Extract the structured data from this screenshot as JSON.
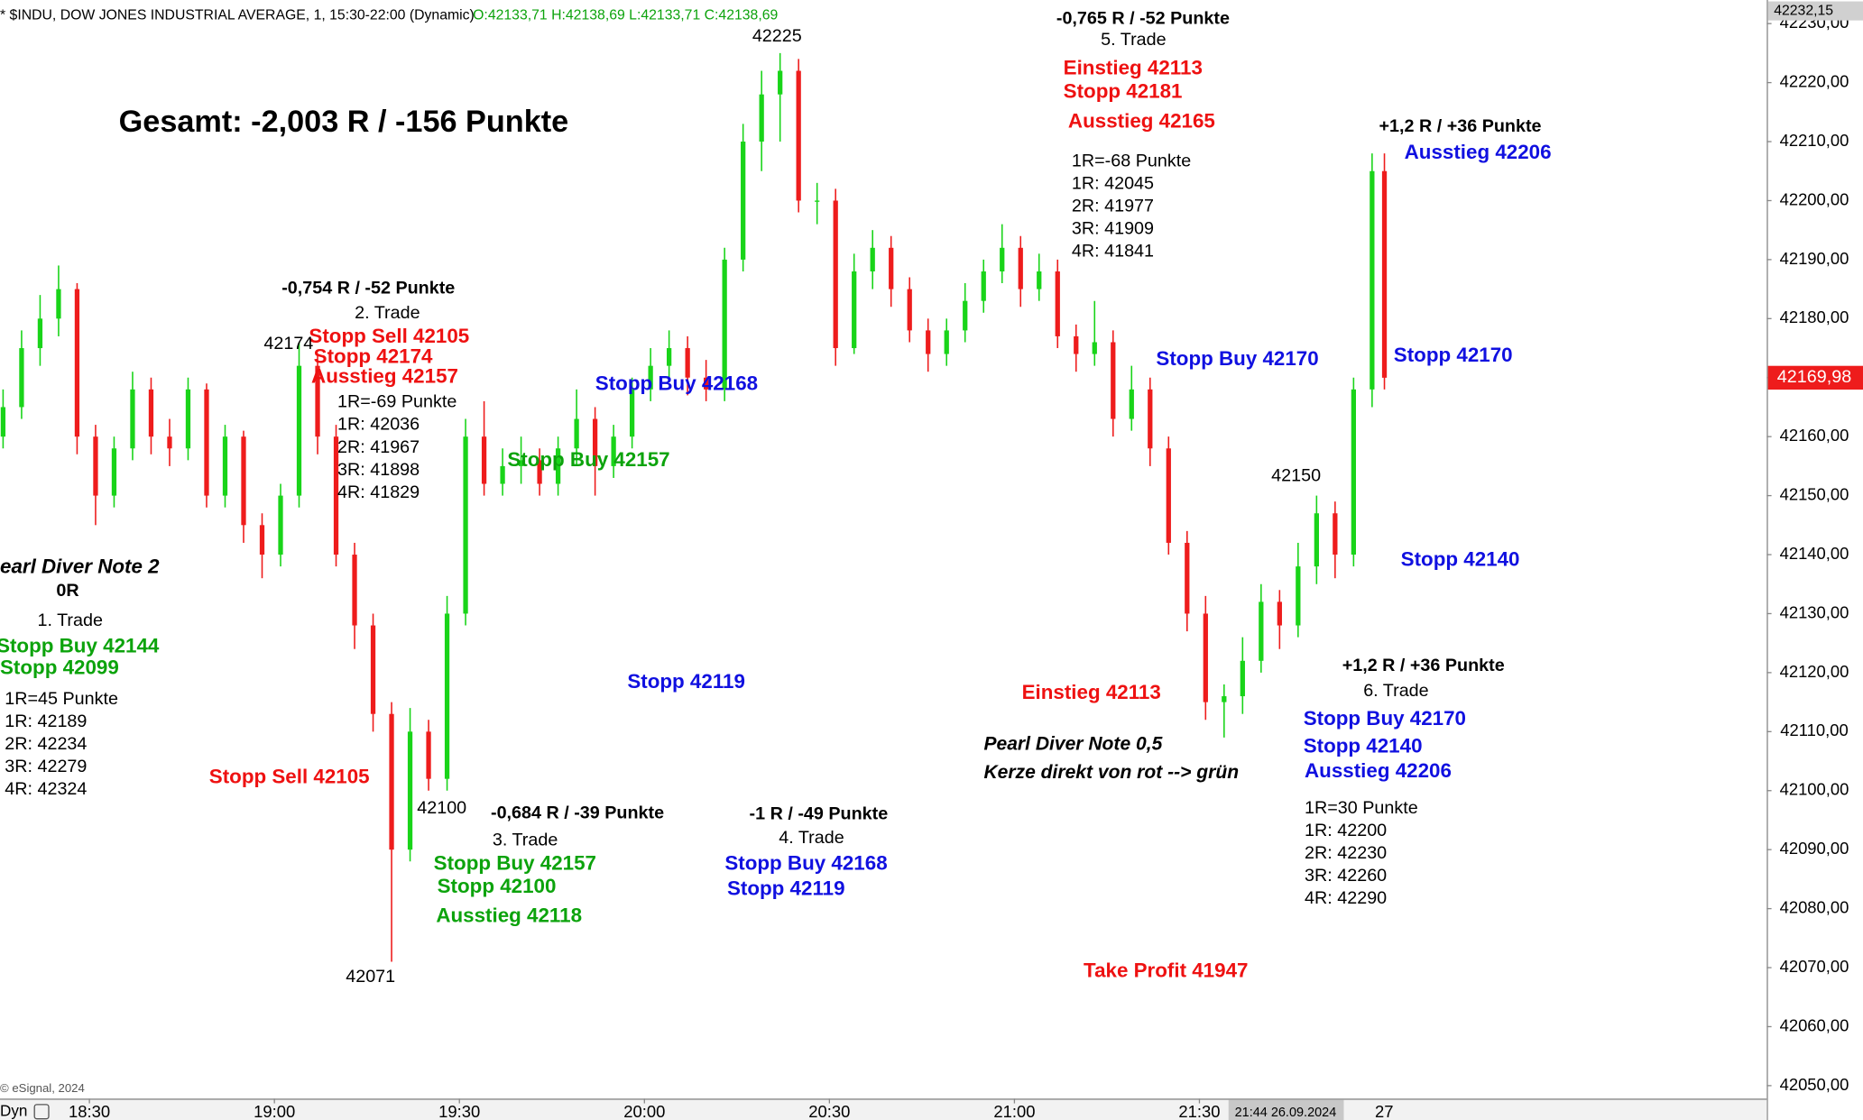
{
  "chart_data": {
    "type": "candlestick",
    "header": "* $INDU, DOW JONES INDUSTRIAL AVERAGE, 1, 15:30-22:00 (Dynamic)",
    "ohlc_header": "O:42133,71 H:42138,69 L:42133,71 C:42138,69",
    "copyright": "© eSignal, 2024",
    "mode_label": "Dyn",
    "cursor_label": "21:44 26.09.2024",
    "next_day_label": "27",
    "up_color": "#19d419",
    "down_color": "#ee1c1c",
    "x": [
      1096,
      1099,
      1102,
      1105,
      1108,
      1111,
      1114,
      1117,
      1120,
      1123,
      1126,
      1129,
      1132,
      1135,
      1138,
      1141,
      1144,
      1147,
      1150,
      1153,
      1156,
      1159,
      1162,
      1165,
      1168,
      1171,
      1174,
      1177,
      1180,
      1183,
      1186,
      1189,
      1192,
      1195,
      1198,
      1201,
      1204,
      1207,
      1210,
      1213,
      1216,
      1219,
      1222,
      1225,
      1228,
      1231,
      1234,
      1237,
      1240,
      1243,
      1246,
      1249,
      1252,
      1255,
      1258,
      1261,
      1264,
      1267,
      1270,
      1273,
      1276,
      1279,
      1282,
      1285,
      1288,
      1291,
      1294,
      1297,
      1300,
      1303,
      1306,
      1309,
      1312,
      1315,
      1318,
      1320
    ],
    "open": [
      42160,
      42165,
      42175,
      42180,
      42185,
      42160,
      42150,
      42158,
      42168,
      42160,
      42158,
      42168,
      42150,
      42160,
      42145,
      42140,
      42150,
      42172,
      42160,
      42140,
      42128,
      42113,
      42090,
      42110,
      42102,
      42130,
      42160,
      42152,
      42155,
      42156,
      42152,
      42158,
      42163,
      42155,
      42160,
      42168,
      42172,
      42175,
      42170,
      42168,
      42190,
      42210,
      42218,
      42222,
      42200,
      42200,
      42175,
      42188,
      42192,
      42185,
      42178,
      42174,
      42178,
      42183,
      42188,
      42192,
      42185,
      42188,
      42177,
      42174,
      42176,
      42163,
      42168,
      42158,
      42142,
      42130,
      42115,
      42116,
      42122,
      42132,
      42128,
      42138,
      42147,
      42140,
      42168,
      42205
    ],
    "high": [
      42168,
      42178,
      42184,
      42189,
      42186,
      42162,
      42160,
      42171,
      42170,
      42163,
      42170,
      42169,
      42162,
      42161,
      42147,
      42152,
      42176,
      42174,
      42162,
      42142,
      42130,
      42115,
      42114,
      42112,
      42133,
      42163,
      42166,
      42158,
      42160,
      42158,
      42160,
      42168,
      42165,
      42162,
      42170,
      42175,
      42178,
      42177,
      42173,
      42192,
      42213,
      42222,
      42225,
      42224,
      42203,
      42202,
      42191,
      42195,
      42194,
      42187,
      42180,
      42180,
      42186,
      42190,
      42196,
      42194,
      42191,
      42190,
      42179,
      42183,
      42178,
      42172,
      42170,
      42160,
      42144,
      42133,
      42118,
      42126,
      42135,
      42134,
      42142,
      42150,
      42149,
      42170,
      42208,
      42208
    ],
    "low": [
      42158,
      42163,
      42172,
      42177,
      42157,
      42145,
      42148,
      42156,
      42157,
      42155,
      42156,
      42148,
      42148,
      42142,
      42136,
      42138,
      42148,
      42157,
      42138,
      42124,
      42110,
      42071,
      42088,
      42100,
      42100,
      42128,
      42150,
      42150,
      42152,
      42150,
      42150,
      42155,
      42150,
      42153,
      42158,
      42166,
      42170,
      42167,
      42166,
      42166,
      42188,
      42205,
      42210,
      42198,
      42196,
      42172,
      42174,
      42185,
      42182,
      42176,
      42171,
      42172,
      42176,
      42181,
      42186,
      42182,
      42183,
      42175,
      42171,
      42172,
      42160,
      42161,
      42155,
      42140,
      42127,
      42112,
      42109,
      42113,
      42120,
      42124,
      42126,
      42135,
      42136,
      42138,
      42165,
      42168
    ],
    "close": [
      42165,
      42175,
      42180,
      42185,
      42160,
      42150,
      42158,
      42168,
      42160,
      42158,
      42168,
      42150,
      42160,
      42145,
      42140,
      42150,
      42172,
      42160,
      42140,
      42128,
      42113,
      42090,
      42110,
      42102,
      42130,
      42160,
      42152,
      42155,
      42156,
      42152,
      42158,
      42163,
      42155,
      42160,
      42168,
      42172,
      42175,
      42170,
      42168,
      42190,
      42210,
      42218,
      42222,
      42200,
      42200,
      42175,
      42188,
      42192,
      42185,
      42178,
      42174,
      42178,
      42183,
      42188,
      42192,
      42185,
      42188,
      42177,
      42174,
      42176,
      42163,
      42168,
      42158,
      42142,
      42130,
      42115,
      42116,
      42122,
      42132,
      42128,
      42138,
      42147,
      42140,
      42168,
      42205,
      42169.98
    ],
    "xlim": [
      1095.5,
      1382
    ],
    "xticks": [
      {
        "value": 1110,
        "label": "18:30"
      },
      {
        "value": 1140,
        "label": "19:00"
      },
      {
        "value": 1170,
        "label": "19:30"
      },
      {
        "value": 1200,
        "label": "20:00"
      },
      {
        "value": 1230,
        "label": "20:30"
      },
      {
        "value": 1260,
        "label": "21:00"
      },
      {
        "value": 1290,
        "label": "21:30"
      }
    ],
    "ylim": [
      42047.8,
      42234.0
    ],
    "yticks": [
      {
        "value": 42050,
        "label": "42050,00"
      },
      {
        "value": 42060,
        "label": "42060,00"
      },
      {
        "value": 42070,
        "label": "42070,00"
      },
      {
        "value": 42080,
        "label": "42080,00"
      },
      {
        "value": 42090,
        "label": "42090,00"
      },
      {
        "value": 42100,
        "label": "42100,00"
      },
      {
        "value": 42110,
        "label": "42110,00"
      },
      {
        "value": 42120,
        "label": "42120,00"
      },
      {
        "value": 42130,
        "label": "42130,00"
      },
      {
        "value": 42140,
        "label": "42140,00"
      },
      {
        "value": 42150,
        "label": "42150,00"
      },
      {
        "value": 42160,
        "label": "42160,00"
      },
      {
        "value": 42170,
        "label": "42170,00"
      },
      {
        "value": 42180,
        "label": "42180,00"
      },
      {
        "value": 42190,
        "label": "42190,00"
      },
      {
        "value": 42200,
        "label": "42200,00"
      },
      {
        "value": 42210,
        "label": "42210,00"
      },
      {
        "value": 42220,
        "label": "42220,00"
      },
      {
        "value": 42230,
        "label": "42230,00"
      }
    ],
    "top_price": {
      "value": 42232.15,
      "label": "42232,15"
    },
    "last_price": {
      "value": 42169.98,
      "label": "42169,98"
    },
    "annotations": [
      {
        "text": "Gesamt: -2,003 R / -156 Punkte",
        "color": "#000000"
      },
      {
        "text": "-0,754 R / -52 Punkte",
        "color": "#000000"
      },
      {
        "text": "2. Trade",
        "color": "#000000"
      },
      {
        "text": "Stopp Sell 42105",
        "color": "#ee1111"
      },
      {
        "text": "Stopp  42174",
        "color": "#ee1111"
      },
      {
        "text": "Ausstieg  42157",
        "color": "#ee1111"
      },
      {
        "text": "1R=-69 Punkte",
        "color": "#000000"
      },
      {
        "text": "1R: 42036",
        "color": "#000000"
      },
      {
        "text": "2R: 41967",
        "color": "#000000"
      },
      {
        "text": "3R: 41898",
        "color": "#000000"
      },
      {
        "text": "4R: 41829",
        "color": "#000000"
      },
      {
        "text": "42174",
        "color": "#000000"
      },
      {
        "text": "earl Diver Note 2",
        "color": "#000000"
      },
      {
        "text": "0R",
        "color": "#000000"
      },
      {
        "text": "1. Trade",
        "color": "#000000"
      },
      {
        "text": "Stopp Buy 42144",
        "color": "#0ca30c"
      },
      {
        "text": "Stopp 42099",
        "color": "#0ca30c"
      },
      {
        "text": "1R=45 Punkte",
        "color": "#000000"
      },
      {
        "text": "1R: 42189",
        "color": "#000000"
      },
      {
        "text": "2R: 42234",
        "color": "#000000"
      },
      {
        "text": "3R: 42279",
        "color": "#000000"
      },
      {
        "text": "4R: 42324",
        "color": "#000000"
      },
      {
        "text": "Stopp Sell 42105",
        "color": "#ee1111"
      },
      {
        "text": "42100",
        "color": "#000000"
      },
      {
        "text": "42071",
        "color": "#000000"
      },
      {
        "text": "-0,684 R / -39 Punkte",
        "color": "#000000"
      },
      {
        "text": "3. Trade",
        "color": "#000000"
      },
      {
        "text": "Stopp Buy 42157",
        "color": "#0ca30c"
      },
      {
        "text": "Stopp 42100",
        "color": "#0ca30c"
      },
      {
        "text": "Ausstieg 42118",
        "color": "#0ca30c"
      },
      {
        "text": "Stopp Buy 42157",
        "color": "#0ca30c"
      },
      {
        "text": "Stopp Buy 42168",
        "color": "#1010e0"
      },
      {
        "text": "Stopp 42119",
        "color": "#1010e0"
      },
      {
        "text": "-1 R / -49 Punkte",
        "color": "#000000"
      },
      {
        "text": "4. Trade",
        "color": "#000000"
      },
      {
        "text": "Stopp Buy 42168",
        "color": "#1010e0"
      },
      {
        "text": "Stopp 42119",
        "color": "#1010e0"
      },
      {
        "text": "42225",
        "color": "#000000"
      },
      {
        "text": "-0,765 R / -52 Punkte",
        "color": "#000000"
      },
      {
        "text": "5. Trade",
        "color": "#000000"
      },
      {
        "text": "Einstieg 42113",
        "color": "#ee1111"
      },
      {
        "text": "Stopp  42181",
        "color": "#ee1111"
      },
      {
        "text": "Ausstieg  42165",
        "color": "#ee1111"
      },
      {
        "text": "1R=-68 Punkte",
        "color": "#000000"
      },
      {
        "text": "1R: 42045",
        "color": "#000000"
      },
      {
        "text": "2R: 41977",
        "color": "#000000"
      },
      {
        "text": "3R: 41909",
        "color": "#000000"
      },
      {
        "text": "4R: 41841",
        "color": "#000000"
      },
      {
        "text": "Stopp Buy 42170",
        "color": "#1010e0"
      },
      {
        "text": "Einstieg 42113",
        "color": "#ee1111"
      },
      {
        "text": "Pearl Diver Note 0,5",
        "color": "#000000"
      },
      {
        "text": "Kerze direkt von rot --> grün",
        "color": "#000000"
      },
      {
        "text": "Take Profit 41947",
        "color": "#ee1111"
      },
      {
        "text": "42150",
        "color": "#000000"
      },
      {
        "text": "+1,2 R / +36 Punkte",
        "color": "#000000"
      },
      {
        "text": "Ausstieg 42206",
        "color": "#1010e0"
      },
      {
        "text": "Stopp 42170",
        "color": "#1010e0"
      },
      {
        "text": "Stopp 42140",
        "color": "#1010e0"
      },
      {
        "text": "+1,2 R / +36 Punkte",
        "color": "#000000"
      },
      {
        "text": "6. Trade",
        "color": "#000000"
      },
      {
        "text": "Stopp Buy 42170",
        "color": "#1010e0"
      },
      {
        "text": "Stopp 42140",
        "color": "#1010e0"
      },
      {
        "text": "Ausstieg 42206",
        "color": "#1010e0"
      },
      {
        "text": "1R=30 Punkte",
        "color": "#000000"
      },
      {
        "text": "1R: 42200",
        "color": "#000000"
      },
      {
        "text": "2R: 42230",
        "color": "#000000"
      },
      {
        "text": "3R: 42260",
        "color": "#000000"
      },
      {
        "text": "4R: 42290",
        "color": "#000000"
      }
    ]
  }
}
